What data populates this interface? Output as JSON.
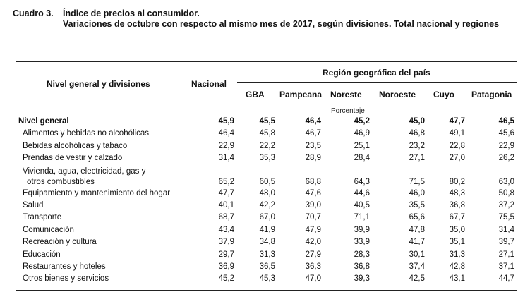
{
  "title": {
    "label": "Cuadro 3.",
    "text": "Índice de precios al consumidor.",
    "subtitle": "Variaciones de octubre con respecto al mismo mes de 2017, según divisiones. Total nacional y regiones"
  },
  "header": {
    "row_label": "Nivel general y divisiones",
    "nacional": "Nacional",
    "region_group": "Región geográfica del país",
    "regions": [
      "GBA",
      "Pampeana",
      "Noreste",
      "Noroeste",
      "Cuyo",
      "Patagonia"
    ],
    "unit": "Porcentaje"
  },
  "rows": [
    {
      "label": "Nivel general",
      "bold": true,
      "values": [
        "45,9",
        "45,5",
        "46,4",
        "45,2",
        "45,0",
        "47,7",
        "46,5"
      ]
    },
    {
      "label": "Alimentos y bebidas no alcohólicas",
      "values": [
        "46,4",
        "45,8",
        "46,7",
        "46,9",
        "46,8",
        "49,1",
        "45,6"
      ]
    },
    {
      "label": "Bebidas alcohólicas y tabaco",
      "values": [
        "22,9",
        "22,2",
        "23,5",
        "25,1",
        "23,2",
        "22,8",
        "22,9"
      ]
    },
    {
      "label": "Prendas de vestir y calzado",
      "values": [
        "31,4",
        "35,3",
        "28,9",
        "28,4",
        "27,1",
        "27,0",
        "26,2"
      ]
    },
    {
      "label": "Vivienda, agua, electricidad, gas y",
      "label2": "otros combustibles",
      "values": [
        "65,2",
        "60,5",
        "68,8",
        "64,3",
        "71,5",
        "80,2",
        "63,0"
      ]
    },
    {
      "label": "Equipamiento y mantenimiento del hogar",
      "values": [
        "47,7",
        "48,0",
        "47,6",
        "44,6",
        "46,0",
        "48,3",
        "50,8"
      ]
    },
    {
      "label": "Salud",
      "values": [
        "40,1",
        "42,2",
        "39,0",
        "40,5",
        "35,5",
        "36,8",
        "37,2"
      ]
    },
    {
      "label": "Transporte",
      "values": [
        "68,7",
        "67,0",
        "70,7",
        "71,1",
        "65,6",
        "67,7",
        "75,5"
      ]
    },
    {
      "label": "Comunicación",
      "values": [
        "43,4",
        "41,9",
        "47,9",
        "39,9",
        "47,8",
        "35,0",
        "31,4"
      ]
    },
    {
      "label": "Recreación y cultura",
      "values": [
        "37,9",
        "34,8",
        "42,0",
        "33,9",
        "41,7",
        "35,1",
        "39,7"
      ]
    },
    {
      "label": "Educación",
      "values": [
        "29,7",
        "31,3",
        "27,9",
        "28,3",
        "30,1",
        "31,3",
        "27,1"
      ]
    },
    {
      "label": "Restaurantes y hoteles",
      "values": [
        "36,9",
        "36,5",
        "36,3",
        "36,8",
        "37,4",
        "42,8",
        "37,1"
      ]
    },
    {
      "label": "Otros bienes y servicios",
      "values": [
        "45,2",
        "45,3",
        "47,0",
        "39,3",
        "42,5",
        "43,1",
        "44,7"
      ]
    }
  ]
}
